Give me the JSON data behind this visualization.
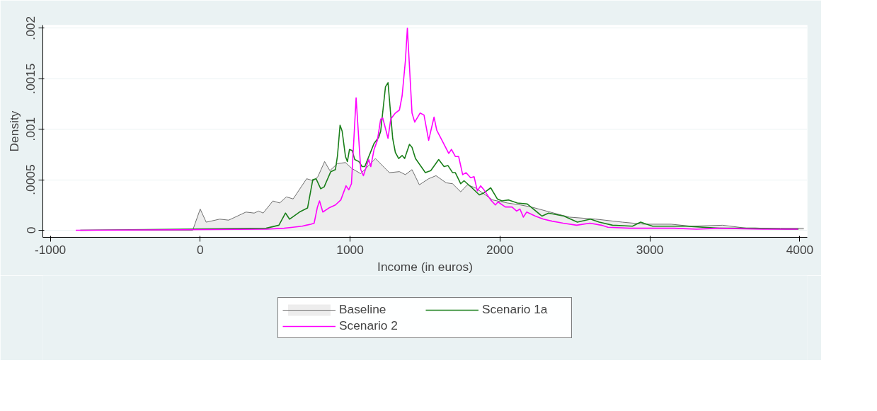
{
  "chart_data": {
    "type": "line",
    "xlabel": "Income (in euros)",
    "ylabel": "Density",
    "xlim": [
      -1050,
      4050
    ],
    "ylim": [
      -7e-05,
      0.00203
    ],
    "xticks": [
      -1000,
      0,
      1000,
      2000,
      3000,
      4000
    ],
    "yticks": [
      0,
      {
        "value": 0.0005,
        "label": ".0005"
      },
      {
        "value": 0.001,
        "label": ".001"
      },
      {
        "value": 0.0015,
        "label": ".0015"
      },
      {
        "value": 0.002,
        "label": ".002"
      }
    ],
    "grid": "y",
    "legend": "bottom",
    "series": [
      {
        "name": "Baseline",
        "type": "area",
        "color": "#6e6e6e",
        "x": [
          -830,
          -50,
          0,
          40,
          130,
          190,
          305,
          360,
          390,
          420,
          485,
          530,
          575,
          620,
          710,
          755,
          785,
          830,
          865,
          916,
          969,
          1013,
          1071,
          1169,
          1262,
          1329,
          1369,
          1413,
          1462,
          1524,
          1573,
          1640,
          1684,
          1738,
          1782,
          1836,
          1893,
          1951,
          2049,
          2138,
          2209,
          2360,
          2462,
          2640,
          2818,
          2964,
          3142,
          3276,
          3484,
          3649,
          3871,
          4027
        ],
        "values": [
          0,
          0,
          0.00021,
          8e-05,
          0.00011,
          0.0001,
          0.00018,
          0.00017,
          0.00019,
          0.00017,
          0.00029,
          0.00027,
          0.00033,
          0.00031,
          0.00051,
          0.00049,
          0.00053,
          0.00068,
          0.00059,
          0.00066,
          0.00067,
          0.00061,
          0.00056,
          0.00071,
          0.00057,
          0.00058,
          0.00055,
          0.0006,
          0.00045,
          0.00051,
          0.00054,
          0.00047,
          0.00046,
          0.00038,
          0.00045,
          0.00042,
          0.00036,
          0.0003,
          0.00027,
          0.00025,
          0.00023,
          0.00017,
          0.00013,
          0.00011,
          8e-05,
          6e-05,
          6e-05,
          4e-05,
          5e-05,
          2e-05,
          2e-05,
          2e-05
        ]
      },
      {
        "name": "Scenario 1a",
        "color": "#1a7f1a",
        "x": [
          -800,
          440,
          525,
          569,
          596,
          662,
          716,
          751,
          773,
          804,
          827,
          871,
          902,
          916,
          933,
          947,
          969,
          982,
          996,
          1013,
          1031,
          1058,
          1080,
          1098,
          1160,
          1191,
          1204,
          1236,
          1253,
          1284,
          1302,
          1324,
          1347,
          1364,
          1396,
          1413,
          1436,
          1502,
          1538,
          1591,
          1627,
          1653,
          1684,
          1702,
          1738,
          1760,
          1813,
          1862,
          1893,
          1938,
          1982,
          2013,
          2058,
          2116,
          2182,
          2280,
          2324,
          2427,
          2516,
          2604,
          2662,
          2751,
          2884,
          2938,
          3018,
          3240,
          3462,
          3702,
          3907,
          3991
        ],
        "values": [
          0,
          2e-05,
          5e-05,
          0.00017,
          0.00011,
          0.00018,
          0.00022,
          0.0005,
          0.00051,
          0.00041,
          0.00043,
          0.00058,
          0.0006,
          0.00074,
          0.00104,
          0.00098,
          0.00073,
          0.00068,
          0.0008,
          0.00079,
          0.0007,
          0.00068,
          0.00063,
          0.00063,
          0.00086,
          0.00092,
          0.00098,
          0.00142,
          0.00146,
          0.00091,
          0.00077,
          0.00071,
          0.00074,
          0.00071,
          0.00085,
          0.00082,
          0.00071,
          0.00057,
          0.00059,
          0.0007,
          0.00063,
          0.00064,
          0.00057,
          0.00057,
          0.00046,
          0.00049,
          0.00042,
          0.00035,
          0.00037,
          0.00042,
          0.00031,
          0.00029,
          0.0003,
          0.00027,
          0.00026,
          0.00014,
          0.00017,
          0.00014,
          8e-05,
          0.00011,
          8e-05,
          5e-05,
          4e-05,
          8e-05,
          4e-05,
          4e-05,
          2e-05,
          2e-05,
          1e-05,
          1e-05
        ]
      },
      {
        "name": "Scenario 2",
        "color": "#ff00ff",
        "x": [
          -830,
          440,
          560,
          618,
          680,
          707,
          738,
          760,
          782,
          796,
          818,
          858,
          902,
          938,
          973,
          991,
          1009,
          1040,
          1071,
          1089,
          1124,
          1138,
          1160,
          1182,
          1204,
          1218,
          1253,
          1271,
          1302,
          1329,
          1347,
          1369,
          1382,
          1413,
          1431,
          1467,
          1493,
          1524,
          1560,
          1578,
          1613,
          1658,
          1676,
          1702,
          1724,
          1751,
          1773,
          1804,
          1827,
          1849,
          1871,
          1893,
          1938,
          1969,
          1987,
          2036,
          2080,
          2111,
          2133,
          2156,
          2178,
          2236,
          2289,
          2347,
          2422,
          2511,
          2600,
          2676,
          2720,
          2867,
          3164,
          3311,
          3458,
          3756,
          3987
        ],
        "values": [
          0,
          1e-05,
          2e-05,
          3e-05,
          4e-05,
          5e-05,
          6e-05,
          7e-05,
          0.00023,
          0.00029,
          0.00018,
          0.00022,
          0.00025,
          0.0003,
          0.00044,
          0.0004,
          0.00046,
          0.00131,
          0.0006,
          0.00054,
          0.0007,
          0.00063,
          0.0008,
          0.00089,
          0.0011,
          0.00111,
          0.00091,
          0.0011,
          0.00116,
          0.00119,
          0.00133,
          0.00168,
          0.002,
          0.00116,
          0.00107,
          0.00116,
          0.00114,
          0.00089,
          0.00112,
          0.00099,
          0.00089,
          0.00076,
          0.0008,
          0.00073,
          0.00073,
          0.00055,
          0.00057,
          0.00052,
          0.00053,
          0.00039,
          0.00044,
          0.0004,
          0.0003,
          0.00025,
          0.00028,
          0.00023,
          0.00023,
          0.00019,
          0.00021,
          0.00013,
          0.00018,
          0.00014,
          0.00011,
          9e-05,
          7e-05,
          5e-05,
          7e-05,
          5e-05,
          3e-05,
          2e-05,
          2e-05,
          1e-05,
          2e-05,
          1e-05,
          1e-05
        ]
      }
    ]
  }
}
